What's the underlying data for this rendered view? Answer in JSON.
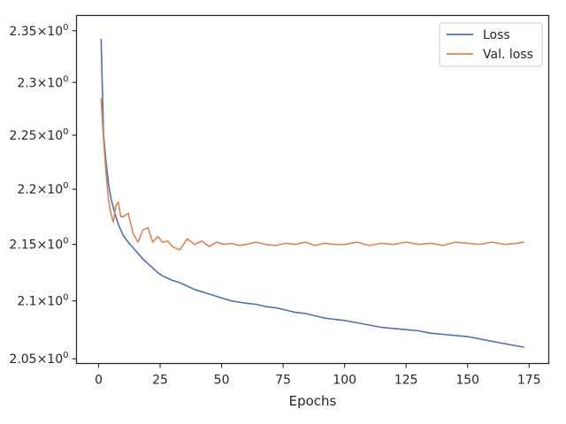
{
  "chart_data": {
    "type": "line",
    "xlabel": "Epochs",
    "ylabel": "",
    "xlim": [
      -9,
      183
    ],
    "ylim": [
      2.046,
      2.365
    ],
    "y_scale": "log",
    "grid": false,
    "legend_position": "top-right",
    "x_ticks": [
      0,
      25,
      50,
      75,
      100,
      125,
      150,
      175
    ],
    "x_tick_labels": [
      "0",
      "25",
      "50",
      "75",
      "100",
      "125",
      "150",
      "175"
    ],
    "y_ticks": [
      2.05,
      2.1,
      2.15,
      2.2,
      2.25,
      2.3,
      2.35
    ],
    "y_tick_mantissas": [
      "2.05",
      "2.1",
      "2.15",
      "2.2",
      "2.25",
      "2.3",
      "2.35"
    ],
    "y_tick_times": "×",
    "y_tick_base": "10",
    "y_tick_exponent": "0",
    "series": [
      {
        "name": "Loss",
        "color": "#4c72b0",
        "x": [
          1,
          2,
          3,
          4,
          5,
          6,
          7,
          8,
          9,
          10,
          12,
          14,
          16,
          18,
          20,
          22,
          24,
          26,
          28,
          30,
          33,
          36,
          39,
          42,
          45,
          48,
          51,
          54,
          57,
          60,
          64,
          68,
          72,
          76,
          80,
          84,
          88,
          92,
          96,
          100,
          105,
          110,
          115,
          120,
          125,
          130,
          135,
          140,
          145,
          150,
          155,
          160,
          165,
          170,
          173
        ],
        "values": [
          2.342,
          2.25,
          2.225,
          2.205,
          2.192,
          2.183,
          2.175,
          2.168,
          2.163,
          2.158,
          2.152,
          2.147,
          2.142,
          2.137,
          2.133,
          2.129,
          2.125,
          2.122,
          2.12,
          2.118,
          2.116,
          2.113,
          2.11,
          2.108,
          2.106,
          2.104,
          2.102,
          2.1,
          2.099,
          2.098,
          2.097,
          2.095,
          2.094,
          2.092,
          2.09,
          2.089,
          2.087,
          2.085,
          2.084,
          2.083,
          2.081,
          2.079,
          2.077,
          2.076,
          2.075,
          2.074,
          2.072,
          2.071,
          2.07,
          2.069,
          2.067,
          2.065,
          2.063,
          2.061,
          2.06
        ]
      },
      {
        "name": "Val. loss",
        "color": "#dd8452",
        "x": [
          1,
          2,
          3,
          4,
          5,
          6,
          7,
          8,
          9,
          10,
          12,
          14,
          16,
          18,
          20,
          22,
          24,
          26,
          28,
          30,
          33,
          36,
          39,
          42,
          45,
          48,
          51,
          54,
          57,
          60,
          64,
          68,
          72,
          76,
          80,
          84,
          88,
          92,
          96,
          100,
          105,
          110,
          115,
          120,
          125,
          130,
          135,
          140,
          145,
          150,
          155,
          160,
          165,
          170,
          173
        ],
        "values": [
          2.285,
          2.245,
          2.215,
          2.19,
          2.178,
          2.17,
          2.185,
          2.188,
          2.175,
          2.175,
          2.178,
          2.16,
          2.152,
          2.163,
          2.165,
          2.152,
          2.157,
          2.152,
          2.153,
          2.148,
          2.145,
          2.155,
          2.15,
          2.153,
          2.148,
          2.152,
          2.15,
          2.151,
          2.149,
          2.15,
          2.152,
          2.15,
          2.149,
          2.151,
          2.15,
          2.152,
          2.149,
          2.151,
          2.15,
          2.15,
          2.152,
          2.149,
          2.151,
          2.15,
          2.152,
          2.15,
          2.151,
          2.149,
          2.152,
          2.151,
          2.15,
          2.152,
          2.15,
          2.151,
          2.152
        ]
      }
    ]
  }
}
